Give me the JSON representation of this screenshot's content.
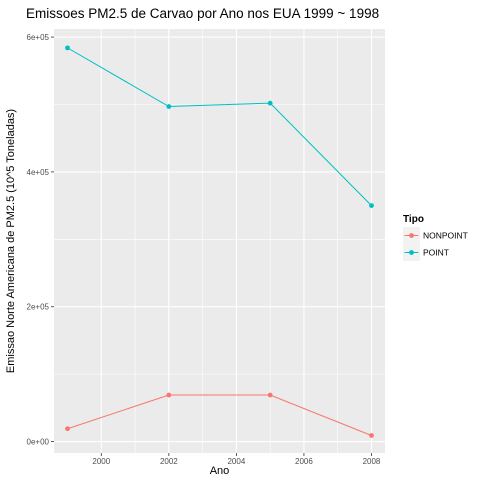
{
  "chart_data": {
    "type": "line",
    "title": "Emissoes PM2.5 de Carvao por Ano nos EUA 1999 ~ 1998",
    "xlabel": "Ano",
    "ylabel": "Emissao Norte Americana de PM2.5 (10^5 Toneladas)",
    "xlim": [
      1998.6,
      2008.4
    ],
    "ylim": [
      -17000,
      612000
    ],
    "x_ticks": [
      2000,
      2002,
      2004,
      2006,
      2008
    ],
    "y_ticks": [
      0,
      200000,
      400000,
      600000
    ],
    "y_tick_labels": [
      "0e+00",
      "2e+05",
      "4e+05",
      "6e+05"
    ],
    "grid": true,
    "legend": {
      "title": "Tipo",
      "position": "right"
    },
    "x": [
      1999,
      2002,
      2005,
      2008
    ],
    "series": [
      {
        "name": "NONPOINT",
        "color": "#F8766D",
        "values": [
          19000,
          69000,
          69000,
          9000
        ]
      },
      {
        "name": "POINT",
        "color": "#00BFC4",
        "values": [
          584000,
          497000,
          502000,
          350000
        ]
      }
    ]
  }
}
